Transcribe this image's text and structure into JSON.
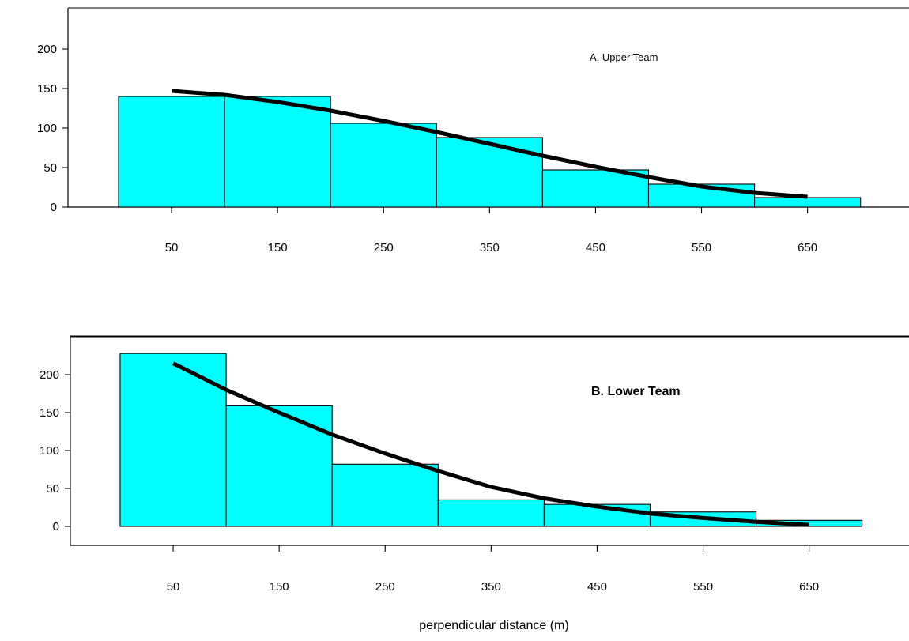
{
  "chart_data": [
    {
      "type": "bar",
      "title": "A.  Upper Team",
      "xlabel": "",
      "ylabel": "",
      "bins": [
        [
          0,
          100
        ],
        [
          100,
          200
        ],
        [
          200,
          300
        ],
        [
          300,
          400
        ],
        [
          400,
          500
        ],
        [
          500,
          600
        ],
        [
          600,
          700
        ]
      ],
      "values": [
        140,
        140,
        106,
        88,
        47,
        29,
        12
      ],
      "xticks": [
        "50",
        "150",
        "250",
        "350",
        "450",
        "550",
        "650"
      ],
      "xtick_values": [
        50,
        150,
        250,
        350,
        450,
        550,
        650
      ],
      "yticks": [
        "0",
        "50",
        "100",
        "150",
        "200"
      ],
      "ytick_values": [
        0,
        50,
        100,
        150,
        200
      ],
      "ylim": [
        0,
        200
      ],
      "xlim": [
        0,
        700
      ],
      "bar_color": "#00ffff",
      "fit_curve": {
        "x": [
          50,
          100,
          150,
          200,
          250,
          300,
          350,
          400,
          450,
          500,
          550,
          600,
          650
        ],
        "y": [
          147,
          142,
          133,
          122,
          109,
          95,
          80,
          65,
          51,
          38,
          26,
          18,
          13
        ]
      }
    },
    {
      "type": "bar",
      "title": "B.  Lower Team",
      "xlabel": "perpendicular distance (m)",
      "ylabel": "",
      "bins": [
        [
          0,
          100
        ],
        [
          100,
          200
        ],
        [
          200,
          300
        ],
        [
          300,
          400
        ],
        [
          400,
          500
        ],
        [
          500,
          600
        ],
        [
          600,
          700
        ]
      ],
      "values": [
        228,
        159,
        82,
        35,
        29,
        19,
        8
      ],
      "xticks": [
        "50",
        "150",
        "250",
        "350",
        "450",
        "550",
        "650"
      ],
      "xtick_values": [
        50,
        150,
        250,
        350,
        450,
        550,
        650
      ],
      "yticks": [
        "0",
        "50",
        "100",
        "150",
        "200"
      ],
      "ytick_values": [
        0,
        50,
        100,
        150,
        200
      ],
      "ylim": [
        0,
        200
      ],
      "xlim": [
        0,
        700
      ],
      "bar_color": "#00ffff",
      "fit_curve": {
        "x": [
          50,
          100,
          150,
          200,
          250,
          300,
          350,
          400,
          450,
          500,
          550,
          600,
          650
        ],
        "y": [
          215,
          180,
          150,
          121,
          96,
          73,
          52,
          37,
          26,
          17,
          11,
          6,
          2
        ]
      }
    }
  ]
}
